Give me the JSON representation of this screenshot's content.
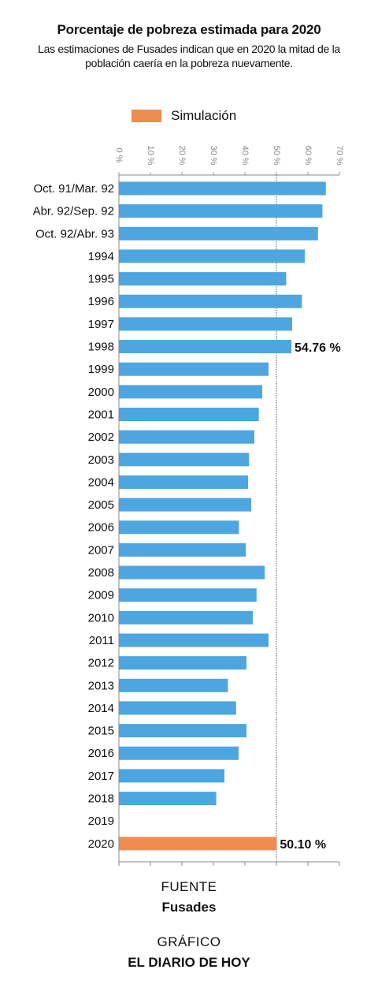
{
  "chart_data": {
    "type": "bar",
    "orientation": "horizontal",
    "title": "Porcentaje de pobreza estimada para 2020",
    "subtitle": "Las estimaciones de Fusades indican que en 2020 la mitad de la población caería en la pobreza nuevamente.",
    "xlim": [
      0,
      70
    ],
    "x_ticks": [
      {
        "value": 0,
        "label": "0 %"
      },
      {
        "value": 10,
        "label": "10 %"
      },
      {
        "value": 20,
        "label": "20 %"
      },
      {
        "value": 30,
        "label": "30 %"
      },
      {
        "value": 40,
        "label": "40 %"
      },
      {
        "value": 50,
        "label": "50 %"
      },
      {
        "value": 60,
        "label": "60 %"
      },
      {
        "value": 70,
        "label": "70 %"
      }
    ],
    "categories": [
      "Oct. 91/Mar. 92",
      "Abr. 92/Sep. 92",
      "Oct. 92/Abr. 93",
      "1994",
      "1995",
      "1996",
      "1997",
      "1998",
      "1999",
      "2000",
      "2001",
      "2002",
      "2003",
      "2004",
      "2005",
      "2006",
      "2007",
      "2008",
      "2009",
      "2010",
      "2011",
      "2012",
      "2013",
      "2014",
      "2015",
      "2016",
      "2017",
      "2018",
      "2019",
      "2020"
    ],
    "values": [
      65.7,
      64.6,
      63.2,
      59.0,
      53.1,
      58.1,
      55.0,
      54.76,
      47.5,
      45.5,
      44.4,
      43.0,
      41.3,
      41.0,
      42.0,
      38.1,
      40.3,
      46.3,
      43.7,
      42.5,
      47.5,
      40.5,
      34.6,
      37.2,
      40.5,
      38.0,
      33.5,
      30.9,
      null,
      50.1
    ],
    "highlight_index": 29,
    "reference_line": 50,
    "data_labels": [
      {
        "category": "1998",
        "label": "54.76 %"
      },
      {
        "category": "2020",
        "label": "50.10 %"
      }
    ],
    "colors": {
      "bar": "#4da6df",
      "simulation": "#ef8c50",
      "axis": "#666666"
    },
    "legend": [
      {
        "label": "Simulación",
        "color": "#ef8c50"
      }
    ],
    "legend_position": "top",
    "grid": false
  },
  "footer": {
    "source_heading": "FUENTE",
    "source_value": "Fusades",
    "credit_heading": "GRÁFICO",
    "credit_value": "EL DIARIO DE HOY"
  }
}
